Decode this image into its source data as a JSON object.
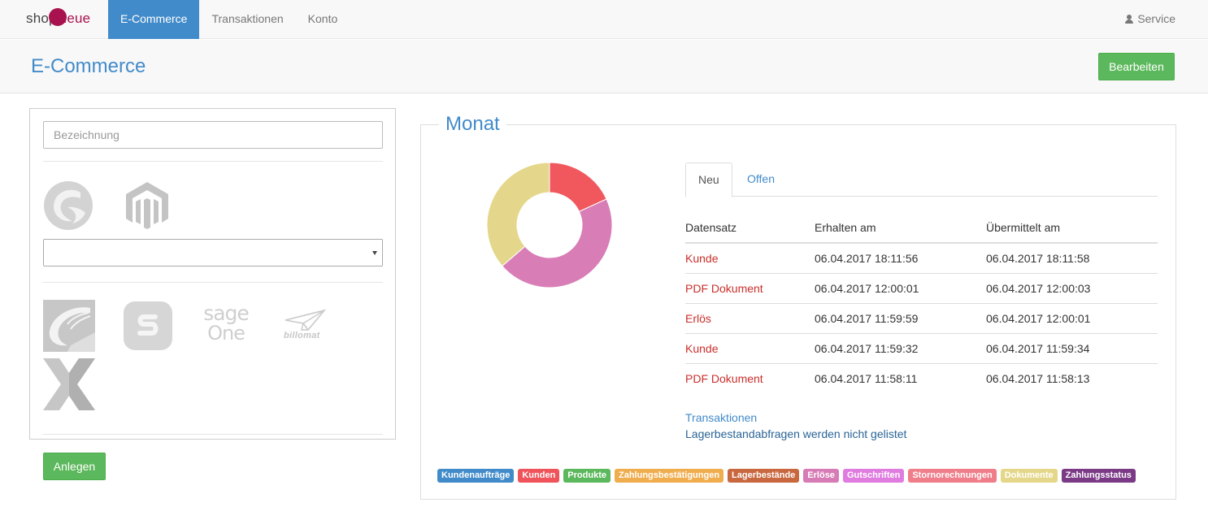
{
  "navbar": {
    "brand": {
      "part1": "sho",
      "part2": "p",
      "part3": "ueue"
    },
    "items": [
      {
        "label": "E-Commerce",
        "active": true
      },
      {
        "label": "Transaktionen",
        "active": false
      },
      {
        "label": "Konto",
        "active": false
      }
    ],
    "service_label": "Service"
  },
  "page": {
    "title": "E-Commerce",
    "edit_label": "Bearbeiten"
  },
  "left": {
    "name_placeholder": "Bezeichnung",
    "shop_logos": [
      "shopware-logo",
      "magento-logo"
    ],
    "select_value": "",
    "erp_logos": [
      "weclapp-logo",
      "sevdesk-logo",
      "sage-one-logo",
      "billomat-logo",
      "xentral-logo"
    ],
    "sage_text": {
      "line1": "sage",
      "line2": "One"
    },
    "billomat_text": "billomat",
    "create_label": "Anlegen"
  },
  "monat": {
    "title": "Monat",
    "tabs": [
      {
        "label": "Neu",
        "active": true
      },
      {
        "label": "Offen",
        "active": false
      }
    ],
    "table": {
      "headers": [
        "Datensatz",
        "Erhalten am",
        "Übermittelt am"
      ],
      "rows": [
        [
          "Kunde",
          "06.04.2017 18:11:56",
          "06.04.2017 18:11:58"
        ],
        [
          "PDF Dokument",
          "06.04.2017 12:00:01",
          "06.04.2017 12:00:03"
        ],
        [
          "Erlös",
          "06.04.2017 11:59:59",
          "06.04.2017 12:00:01"
        ],
        [
          "Kunde",
          "06.04.2017 11:59:32",
          "06.04.2017 11:59:34"
        ],
        [
          "PDF Dokument",
          "06.04.2017 11:58:11",
          "06.04.2017 11:58:13"
        ]
      ]
    },
    "link_transaktionen": "Transaktionen",
    "note": "Lagerbestandabfragen werden nicht gelistet",
    "legend": [
      {
        "label": "Kundenaufträge",
        "color": "#428bca"
      },
      {
        "label": "Kunden",
        "color": "#f0545b"
      },
      {
        "label": "Produkte",
        "color": "#5cb85c"
      },
      {
        "label": "Zahlungsbestätigungen",
        "color": "#f0ad4e"
      },
      {
        "label": "Lagerbestände",
        "color": "#c9673f"
      },
      {
        "label": "Erlöse",
        "color": "#d67bb5"
      },
      {
        "label": "Gutschriften",
        "color": "#e07be0"
      },
      {
        "label": "Stornorechnungen",
        "color": "#f07d8a"
      },
      {
        "label": "Dokumente",
        "color": "#e5d78a"
      },
      {
        "label": "Zahlungsstatus",
        "color": "#7b3a86"
      }
    ]
  },
  "chart_data": {
    "type": "pie",
    "donut": true,
    "slices": [
      {
        "label": "Kunden",
        "value": 2,
        "color": "#f0585e"
      },
      {
        "label": "Erlöse",
        "value": 5,
        "color": "#d87db6"
      },
      {
        "label": "Dokumente",
        "value": 4,
        "color": "#e4d78c"
      }
    ]
  }
}
